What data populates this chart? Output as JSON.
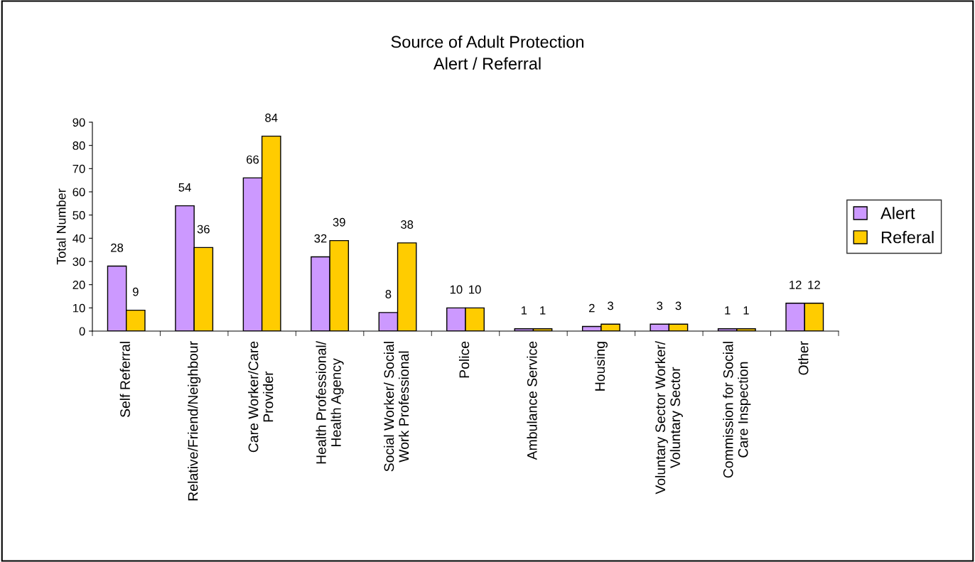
{
  "chart_data": {
    "type": "bar",
    "title": "Source of Adult Protection\nAlert / Referral",
    "ylabel": "Total Number",
    "categories": [
      "Self Referral",
      "Relative/Friend/Neighbour",
      "Care Worker/Care\nProvider",
      "Health Professional/\nHealth Agency",
      "Social Worker/ Social\nWork Professional",
      "Police",
      "Ambulance Service",
      "Housing",
      "Voluntary Sector Worker/\nVoluntary Sector",
      "Commission for Social\nCare Inspection",
      "Other"
    ],
    "series": [
      {
        "name": "Alert",
        "color": "#cc99ff",
        "values": [
          28,
          54,
          66,
          32,
          8,
          10,
          1,
          2,
          3,
          1,
          12
        ]
      },
      {
        "name": "Referal",
        "color": "#ffcc00",
        "values": [
          9,
          36,
          84,
          39,
          38,
          10,
          1,
          3,
          3,
          1,
          12
        ]
      }
    ],
    "ylim": [
      0,
      90
    ],
    "yticks": [
      0,
      10,
      20,
      30,
      40,
      50,
      60,
      70,
      80,
      90
    ],
    "grid": false,
    "legend": "right",
    "data_labels": true
  }
}
